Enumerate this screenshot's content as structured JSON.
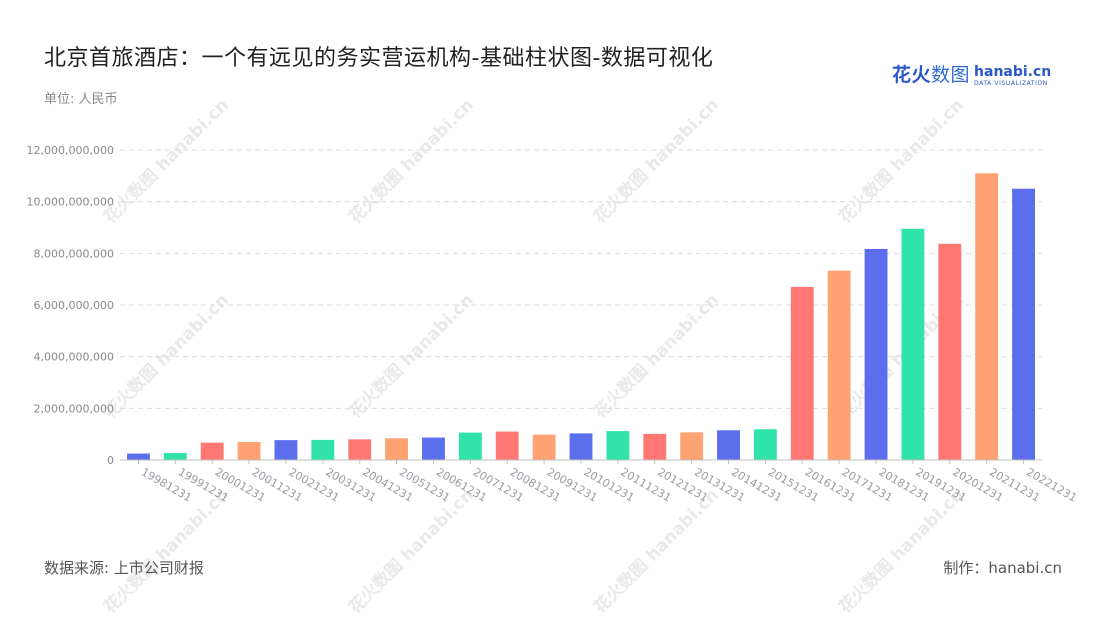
{
  "title": "北京首旅酒店：一个有远见的务实营运机构-基础柱状图-数据可视化",
  "unit": "单位: 人民币",
  "logo": {
    "cn": "花火",
    "cn_light": "数图",
    "en": "hanabi.cn",
    "en_sub": "DATA VISUALIZATION"
  },
  "watermark": "花火数图 hanabi.cn",
  "footer": {
    "source": "数据来源: 上市公司财报",
    "maker": "制作：hanabi.cn"
  },
  "palette": [
    "#5B6FED",
    "#2FE3AA",
    "#FF7772",
    "#FFA272"
  ],
  "chart_data": {
    "type": "bar",
    "categories": [
      "19981231",
      "19991231",
      "20001231",
      "20011231",
      "20021231",
      "20031231",
      "20041231",
      "20051231",
      "20061231",
      "20071231",
      "20081231",
      "20091231",
      "20101231",
      "20111231",
      "20121231",
      "20131231",
      "20141231",
      "20151231",
      "20161231",
      "20171231",
      "20181231",
      "20191231",
      "20201231",
      "20211231",
      "20221231"
    ],
    "values": [
      250000000,
      270000000,
      670000000,
      700000000,
      770000000,
      780000000,
      800000000,
      840000000,
      870000000,
      1060000000,
      1100000000,
      980000000,
      1030000000,
      1120000000,
      1010000000,
      1070000000,
      1150000000,
      1190000000,
      6700000000,
      7330000000,
      8170000000,
      8950000000,
      8370000000,
      11100000000,
      10500000000
    ],
    "bar_colors": [
      "#5B6FED",
      "#2FE3AA",
      "#FF7772",
      "#FFA272",
      "#5B6FED",
      "#2FE3AA",
      "#FF7772",
      "#FFA272",
      "#5B6FED",
      "#2FE3AA",
      "#FF7772",
      "#FFA272",
      "#5B6FED",
      "#2FE3AA",
      "#FF7772",
      "#FFA272",
      "#5B6FED",
      "#2FE3AA",
      "#FF7772",
      "#FFA272",
      "#5B6FED",
      "#2FE3AA",
      "#FF7772",
      "#FFA272",
      "#5B6FED"
    ],
    "ylim": [
      0,
      12000000000
    ],
    "yticks": [
      0,
      2000000000,
      4000000000,
      6000000000,
      8000000000,
      10000000000,
      12000000000
    ],
    "ytick_labels": [
      "0",
      "2,000,000,000",
      "4,000,000,000",
      "6,000,000,000",
      "8,000,000,000",
      "10,000,000,000",
      "12,000,000,000"
    ],
    "grid": true,
    "legend": "none"
  }
}
